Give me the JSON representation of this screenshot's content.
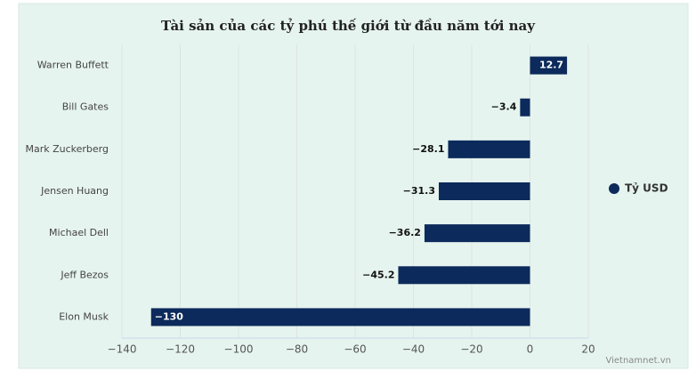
{
  "chart_data": {
    "type": "bar",
    "orientation": "horizontal",
    "title": "Tài sản của các tỷ phú thế giới từ đầu năm tới nay",
    "categories": [
      "Warren Buffett",
      "Bill Gates",
      "Mark Zuckerberg",
      "Jensen Huang",
      "Michael Dell",
      "Jeff Bezos",
      "Elon Musk"
    ],
    "series": [
      {
        "name": "Tỷ USD",
        "color": "#0c2a5b",
        "values": [
          12.7,
          -3.4,
          -28.1,
          -31.3,
          -36.2,
          -45.2,
          -130
        ],
        "value_labels": [
          "12.7",
          "−3.4",
          "−28.1",
          "−31.3",
          "−36.2",
          "−45.2",
          "−130"
        ]
      }
    ],
    "xlim": [
      -140,
      20
    ],
    "xticks": [
      {
        "value": -140,
        "label": "−140"
      },
      {
        "value": -120,
        "label": "−120"
      },
      {
        "value": -100,
        "label": "−100"
      },
      {
        "value": -80,
        "label": "−80"
      },
      {
        "value": -60,
        "label": "−60"
      },
      {
        "value": -40,
        "label": "−40"
      },
      {
        "value": -20,
        "label": "−20"
      },
      0,
      20
    ],
    "grid": true,
    "legend": "right",
    "source": "Vietnamnet.vn"
  }
}
